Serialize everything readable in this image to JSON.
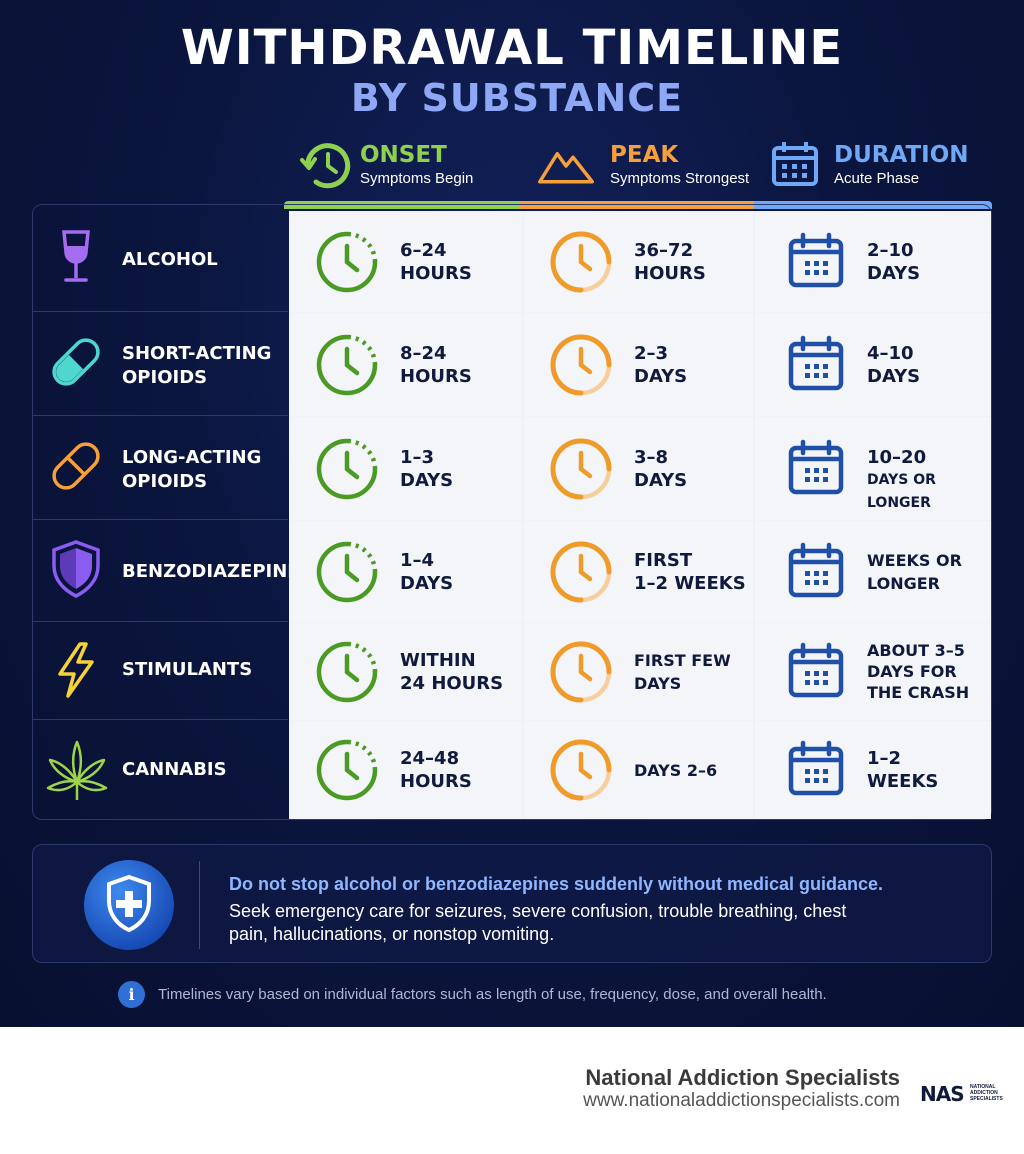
{
  "title": {
    "line1": "WITHDRAWAL TIMELINE",
    "line2": "BY SUBSTANCE"
  },
  "columns": [
    {
      "name": "ONSET",
      "subtitle": "Symptoms Begin",
      "color": "#8fd14f",
      "icon": "clock-arrow-icon"
    },
    {
      "name": "PEAK",
      "subtitle": "Symptoms Strongest",
      "color": "#f5a03a",
      "icon": "mountain-peak-icon"
    },
    {
      "name": "DURATION",
      "subtitle": "Acute Phase",
      "color": "#6ea8f7",
      "icon": "calendar-icon"
    }
  ],
  "rows": [
    {
      "substance": [
        "ALCOHOL"
      ],
      "icon": "wine-glass-icon",
      "onset": [
        "6–24",
        "HOURS"
      ],
      "peak": [
        "36–72",
        "HOURS"
      ],
      "duration": [
        "2–10",
        "DAYS"
      ]
    },
    {
      "substance": [
        "SHORT-ACTING",
        "OPIOIDS"
      ],
      "icon": "capsule-icon",
      "onset": [
        "8–24",
        "HOURS"
      ],
      "peak": [
        "2–3",
        "DAYS"
      ],
      "duration": [
        "4–10",
        "DAYS"
      ]
    },
    {
      "substance": [
        "LONG-ACTING",
        "OPIOIDS"
      ],
      "icon": "capsule-icon",
      "onset": [
        "1–3",
        "DAYS"
      ],
      "peak": [
        "3–8",
        "DAYS"
      ],
      "duration": [
        "10–20",
        "DAYS OR LONGER"
      ]
    },
    {
      "substance": [
        "BENZODIAZEPINES"
      ],
      "icon": "shield-icon",
      "onset": [
        "1–4",
        "DAYS"
      ],
      "peak": [
        "FIRST",
        "1–2 WEEKS"
      ],
      "duration": [
        "WEEKS OR",
        "LONGER"
      ]
    },
    {
      "substance": [
        "STIMULANTS"
      ],
      "icon": "lightning-bolt-icon",
      "onset": [
        "WITHIN",
        "24 HOURS"
      ],
      "peak": [
        "FIRST FEW",
        "DAYS"
      ],
      "duration": [
        "ABOUT 3–5",
        "DAYS FOR",
        "THE CRASH"
      ]
    },
    {
      "substance": [
        "CANNABIS"
      ],
      "icon": "cannabis-leaf-icon",
      "onset": [
        "24–48",
        "HOURS"
      ],
      "peak": [
        "DAYS 2–6"
      ],
      "duration": [
        "1–2",
        "WEEKS"
      ]
    }
  ],
  "warning": {
    "headline": "Do not stop alcohol or benzodiazepines suddenly without medical guidance.",
    "body": "Seek emergency care for seizures, severe confusion, trouble breathing, chest pain, hallucinations, or nonstop vomiting."
  },
  "note": "Timelines vary based on individual factors such as length of use, frequency, dose, and overall health.",
  "footer": {
    "org": "National Addiction Specialists",
    "url": "www.nationaladdictionspecialists.com",
    "logo_mark": "NAS",
    "logo_text": "NATIONAL ADDICTION SPECIALISTS"
  },
  "colors": {
    "background": "#0b1640",
    "onset": "#4a9a24",
    "peak": "#f09a2a",
    "duration": "#1f4fa6",
    "alcohol": "#a56cf0",
    "short_opioids": "#4fd6cf",
    "long_opioids": "#f5a03a",
    "benzo": "#8a5cf0",
    "stimulants": "#f5d23a",
    "cannabis": "#9ed44a"
  }
}
